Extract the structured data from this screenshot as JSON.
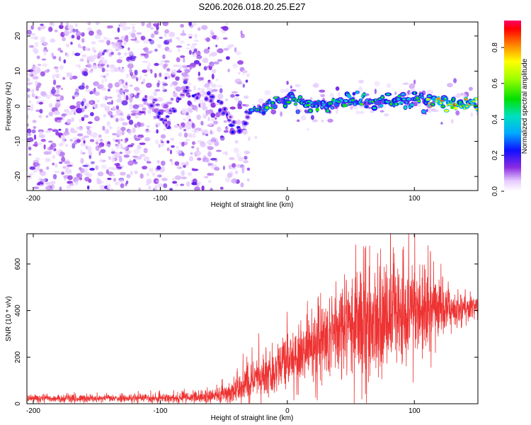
{
  "chart_data": [
    {
      "type": "heatmap",
      "title": "S206.2026.018.20.25.E27",
      "xlabel": "Height of straight line (km)",
      "ylabel": "Frequency (Hz)",
      "xlim": [
        -205,
        150
      ],
      "ylim": [
        -24,
        24
      ],
      "xticks": [
        -200,
        -100,
        0,
        100
      ],
      "yticks": [
        -20,
        -10,
        0,
        10,
        20
      ],
      "description_values": {
        "ridge_frequency_hz": [
          {
            "x": -110,
            "y": 2
          },
          {
            "x": -95,
            "y": -4
          },
          {
            "x": -80,
            "y": 4
          },
          {
            "x": -62,
            "y": 3
          },
          {
            "x": -48,
            "y": -2
          },
          {
            "x": -40,
            "y": -7
          },
          {
            "x": -30,
            "y": -2
          },
          {
            "x": -15,
            "y": 1
          },
          {
            "x": 0,
            "y": 2
          },
          {
            "x": 25,
            "y": 0
          },
          {
            "x": 50,
            "y": 2
          },
          {
            "x": 75,
            "y": 1
          },
          {
            "x": 100,
            "y": 2
          },
          {
            "x": 125,
            "y": 1
          },
          {
            "x": 150,
            "y": 1
          }
        ]
      },
      "colorbar": {
        "label": "Normalized spectral amplitude",
        "range": [
          0,
          0.95
        ],
        "ticks": [
          0.0,
          0.2,
          0.4,
          0.6,
          0.8
        ]
      }
    },
    {
      "type": "line",
      "xlabel": "Height of straight line (km)",
      "ylabel": "SNR (10 * v/v)",
      "xlim": [
        -205,
        150
      ],
      "ylim": [
        0,
        730
      ],
      "xticks": [
        -200,
        -100,
        0,
        100
      ],
      "yticks": [
        0,
        200,
        400,
        600
      ],
      "series": [
        {
          "name": "SNR",
          "color": "#ee3333",
          "x": [
            -205,
            -180,
            -160,
            -140,
            -120,
            -100,
            -80,
            -60,
            -50,
            -40,
            -30,
            -20,
            -10,
            0,
            10,
            20,
            30,
            40,
            50,
            60,
            70,
            80,
            90,
            100,
            110,
            120,
            130,
            140,
            150
          ],
          "mean": [
            22,
            22,
            22,
            23,
            23,
            25,
            27,
            30,
            40,
            60,
            90,
            120,
            150,
            180,
            210,
            250,
            280,
            310,
            330,
            350,
            360,
            370,
            380,
            390,
            400,
            405,
            410,
            410,
            410
          ],
          "spread": [
            15,
            15,
            15,
            15,
            16,
            17,
            18,
            25,
            35,
            50,
            70,
            80,
            90,
            110,
            130,
            150,
            170,
            190,
            200,
            210,
            215,
            215,
            200,
            170,
            140,
            110,
            80,
            60,
            50
          ]
        }
      ]
    }
  ]
}
